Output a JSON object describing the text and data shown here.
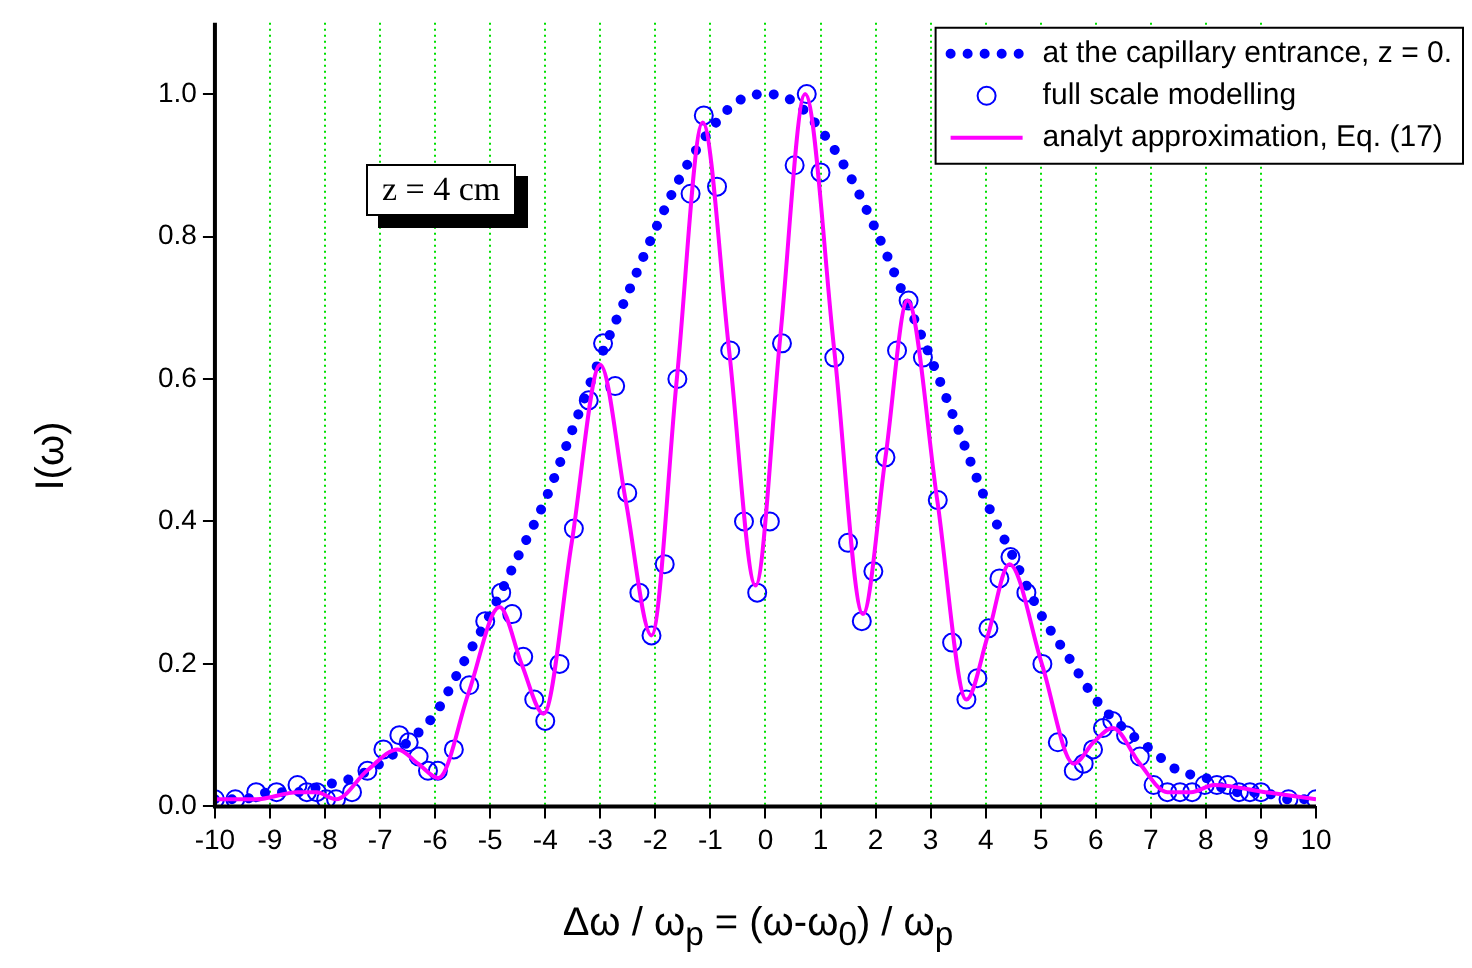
{
  "chart_data": {
    "type": "line",
    "xlabel": "Δω / ω$_{p}$ = (ω-ω$_{0}$) / ω$_{p}$",
    "ylabel": "I(ω)",
    "annotations": [
      "z = 4 cm"
    ],
    "xlim": [
      -10,
      10
    ],
    "xticks": [
      -10,
      -9,
      -8,
      -7,
      -6,
      -5,
      -4,
      -3,
      -2,
      -1,
      0,
      1,
      2,
      3,
      4,
      5,
      6,
      7,
      8,
      9,
      10
    ],
    "ylim": [
      0,
      1.1
    ],
    "yticks": [
      {
        "value": 0,
        "label": "0.0"
      },
      {
        "value": 0.2,
        "label": "0.2"
      },
      {
        "value": 0.4,
        "label": "0.4"
      },
      {
        "value": 0.6,
        "label": "0.6"
      },
      {
        "value": 0.8,
        "label": "0.8"
      },
      {
        "value": 1,
        "label": "1.0"
      }
    ],
    "grid": "x",
    "legend": "top right",
    "series": [
      {
        "name": "at the capillary entrance, z = 0.",
        "type": "line",
        "line_style": "dotted",
        "marker": "none",
        "color": "#0000ff",
        "x": [
          -10,
          -9.5,
          -9,
          -8.5,
          -8,
          -7.5,
          -7,
          -6.5,
          -6,
          -5.5,
          -5,
          -4.5,
          -4,
          -3.5,
          -3,
          -2.5,
          -2,
          -1.5,
          -1,
          -0.5,
          0,
          0.5,
          1,
          1.5,
          2,
          2.5,
          3,
          3.5,
          4,
          4.5,
          5,
          5.5,
          6,
          6.5,
          7,
          7.5,
          8,
          8.5,
          9,
          9.5,
          10
        ],
        "values": [
          0.01,
          0.01,
          0.02,
          0.02,
          0.03,
          0.04,
          0.06,
          0.09,
          0.13,
          0.2,
          0.27,
          0.35,
          0.43,
          0.53,
          0.63,
          0.72,
          0.81,
          0.89,
          0.95,
          0.99,
          1.0,
          0.99,
          0.95,
          0.89,
          0.81,
          0.72,
          0.63,
          0.53,
          0.43,
          0.35,
          0.27,
          0.21,
          0.15,
          0.11,
          0.08,
          0.05,
          0.04,
          0.02,
          0.02,
          0.01,
          0.01
        ]
      },
      {
        "name": "full scale modelling",
        "type": "scatter",
        "marker": "circle",
        "color": "#0000ff",
        "x": [
          -10,
          -9.63,
          -9.25,
          -8.88,
          -8.5,
          -8.33,
          -8.15,
          -7.98,
          -7.8,
          -7.51,
          -7.23,
          -6.94,
          -6.65,
          -6.48,
          -6.3,
          -6.13,
          -5.95,
          -5.66,
          -5.38,
          -5.09,
          -4.8,
          -4.6,
          -4.4,
          -4.2,
          -4.0,
          -3.74,
          -3.48,
          -3.21,
          -2.95,
          -2.73,
          -2.51,
          -2.29,
          -2.07,
          -1.83,
          -1.6,
          -1.36,
          -1.12,
          -0.88,
          -0.64,
          -0.39,
          -0.15,
          0.08,
          0.3,
          0.53,
          0.75,
          1.0,
          1.25,
          1.5,
          1.75,
          1.96,
          2.18,
          2.39,
          2.6,
          2.86,
          3.13,
          3.39,
          3.65,
          3.85,
          4.05,
          4.25,
          4.45,
          4.74,
          5.03,
          5.31,
          5.6,
          5.78,
          5.95,
          6.13,
          6.3,
          6.55,
          6.8,
          7.05,
          7.3,
          7.53,
          7.75,
          7.98,
          8.2,
          8.4,
          8.6,
          8.8,
          9.0,
          9.5,
          10
        ],
        "values": [
          0.01,
          0.01,
          0.02,
          0.02,
          0.03,
          0.02,
          0.02,
          0.01,
          0.01,
          0.02,
          0.05,
          0.08,
          0.1,
          0.09,
          0.07,
          0.05,
          0.05,
          0.08,
          0.17,
          0.26,
          0.3,
          0.27,
          0.21,
          0.15,
          0.12,
          0.2,
          0.39,
          0.57,
          0.65,
          0.59,
          0.44,
          0.3,
          0.24,
          0.34,
          0.6,
          0.86,
          0.97,
          0.87,
          0.64,
          0.4,
          0.3,
          0.4,
          0.65,
          0.9,
          1.0,
          0.89,
          0.63,
          0.37,
          0.26,
          0.33,
          0.49,
          0.64,
          0.71,
          0.63,
          0.43,
          0.23,
          0.15,
          0.18,
          0.25,
          0.32,
          0.35,
          0.3,
          0.2,
          0.09,
          0.05,
          0.06,
          0.08,
          0.11,
          0.12,
          0.1,
          0.07,
          0.03,
          0.02,
          0.02,
          0.02,
          0.03,
          0.03,
          0.03,
          0.02,
          0.02,
          0.02,
          0.01,
          0.01
        ]
      },
      {
        "name": "analyt approximation, Eq. (17)",
        "type": "line",
        "line_style": "solid",
        "marker": "none",
        "color": "#ff00ff",
        "x": [
          -10,
          -9.25,
          -8.5,
          -8.15,
          -7.8,
          -7.24,
          -6.68,
          -6.31,
          -5.94,
          -5.39,
          -4.83,
          -4.43,
          -4.03,
          -3.52,
          -3.0,
          -2.54,
          -2.07,
          -1.61,
          -1.14,
          -0.66,
          -0.18,
          0.27,
          0.72,
          1.25,
          1.77,
          2.18,
          2.58,
          3.12,
          3.65,
          4.04,
          4.43,
          5.02,
          5.6,
          5.96,
          6.31,
          6.8,
          7.3,
          7.73,
          8.15,
          9.08,
          10
        ],
        "values": [
          0.01,
          0.01,
          0.02,
          0.02,
          0.01,
          0.05,
          0.08,
          0.06,
          0.04,
          0.16,
          0.28,
          0.2,
          0.13,
          0.37,
          0.62,
          0.43,
          0.24,
          0.6,
          0.96,
          0.64,
          0.31,
          0.66,
          1.0,
          0.64,
          0.27,
          0.49,
          0.71,
          0.43,
          0.15,
          0.24,
          0.34,
          0.2,
          0.06,
          0.09,
          0.11,
          0.06,
          0.02,
          0.02,
          0.03,
          0.02,
          0.01
        ]
      }
    ]
  }
}
